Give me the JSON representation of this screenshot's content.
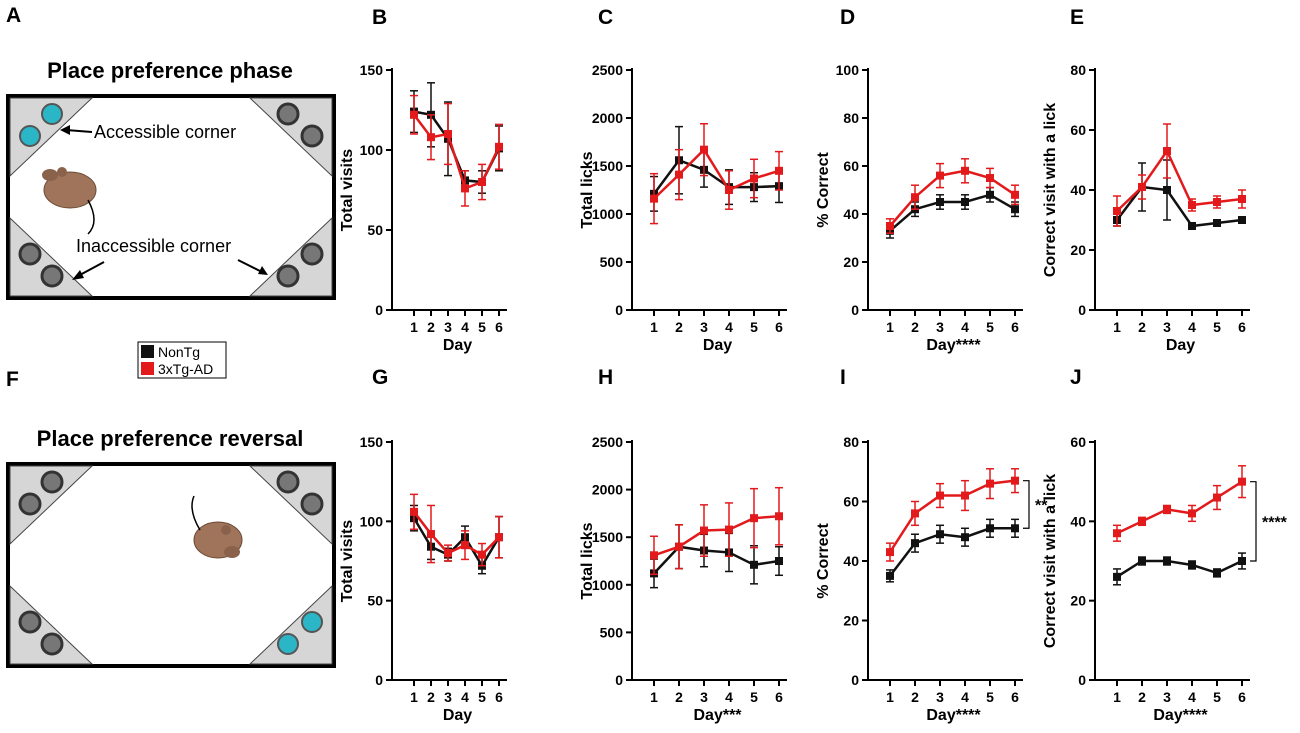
{
  "panel_letters": [
    "A",
    "B",
    "C",
    "D",
    "E",
    "F",
    "G",
    "H",
    "I",
    "J"
  ],
  "schematics": [
    {
      "letter": "A",
      "title": "Place preference phase",
      "labels": {
        "accessible": "Accessible corner",
        "inaccessible": "Inaccessible corner"
      }
    },
    {
      "letter": "F",
      "title": "Place preference reversal"
    }
  ],
  "legend": [
    {
      "name": "NonTg",
      "color": "#111111"
    },
    {
      "name": "3xTg-AD",
      "color": "#e31a1c"
    }
  ],
  "colors": {
    "nontg": "#111111",
    "tg": "#e31a1c",
    "mouse": "#a0745a",
    "cyan": "#2bb6c7",
    "gray_corner": "#cfcfcf"
  },
  "chart_data": [
    {
      "id": "B",
      "type": "line",
      "title": "",
      "xlabel": "Day",
      "ylabel": "Total visits",
      "x": [
        1,
        2,
        3,
        4,
        5,
        6
      ],
      "ylim": [
        0,
        150
      ],
      "yticks": [
        0,
        50,
        100,
        150
      ],
      "series": [
        {
          "name": "NonTg",
          "values": [
            124,
            122,
            107,
            81,
            80,
            101
          ],
          "errors": [
            13,
            20,
            23,
            6,
            7,
            14
          ]
        },
        {
          "name": "3xTg-AD",
          "values": [
            122,
            108,
            110,
            76,
            80,
            102
          ],
          "errors": [
            12,
            14,
            19,
            11,
            11,
            14
          ]
        }
      ]
    },
    {
      "id": "C",
      "type": "line",
      "title": "",
      "xlabel": "Day",
      "ylabel": "Total licks",
      "x": [
        1,
        2,
        3,
        4,
        5,
        6
      ],
      "ylim": [
        0,
        2500
      ],
      "yticks": [
        0,
        500,
        1000,
        1500,
        2000,
        2500
      ],
      "series": [
        {
          "name": "NonTg",
          "values": [
            1210,
            1560,
            1460,
            1280,
            1280,
            1290
          ],
          "errors": [
            180,
            350,
            180,
            180,
            150,
            170
          ]
        },
        {
          "name": "3xTg-AD",
          "values": [
            1160,
            1410,
            1670,
            1250,
            1370,
            1450
          ],
          "errors": [
            260,
            260,
            270,
            200,
            200,
            200
          ]
        }
      ]
    },
    {
      "id": "D",
      "type": "line",
      "title": "",
      "xlabel": "Day****",
      "ylabel": "% Correct",
      "x": [
        1,
        2,
        3,
        4,
        5,
        6
      ],
      "ylim": [
        0,
        100
      ],
      "yticks": [
        0,
        20,
        40,
        60,
        80,
        100
      ],
      "series": [
        {
          "name": "NonTg",
          "values": [
            33,
            42,
            45,
            45,
            48,
            42
          ],
          "errors": [
            3,
            3,
            3,
            3,
            3,
            3
          ]
        },
        {
          "name": "3xTg-AD",
          "values": [
            35,
            47,
            56,
            58,
            55,
            48
          ],
          "errors": [
            3,
            5,
            5,
            5,
            4,
            4
          ]
        }
      ]
    },
    {
      "id": "E",
      "type": "line",
      "title": "",
      "xlabel": "Day",
      "ylabel": "Correct visit with a lick",
      "x": [
        1,
        2,
        3,
        4,
        5,
        6
      ],
      "ylim": [
        0,
        80
      ],
      "yticks": [
        0,
        20,
        40,
        60,
        80
      ],
      "series": [
        {
          "name": "NonTg",
          "values": [
            30,
            41,
            40,
            28,
            29,
            30
          ],
          "errors": [
            2,
            8,
            10,
            1,
            1,
            1
          ]
        },
        {
          "name": "3xTg-AD",
          "values": [
            33,
            41,
            53,
            35,
            36,
            37
          ],
          "errors": [
            5,
            4,
            9,
            2,
            2,
            3
          ]
        }
      ]
    },
    {
      "id": "G",
      "type": "line",
      "title": "",
      "xlabel": "Day",
      "ylabel": "Total visits",
      "x": [
        1,
        2,
        3,
        4,
        5,
        6
      ],
      "ylim": [
        0,
        150
      ],
      "yticks": [
        0,
        50,
        100,
        150
      ],
      "series": [
        {
          "name": "NonTg",
          "values": [
            102,
            84,
            79,
            90,
            72,
            90
          ],
          "errors": [
            8,
            8,
            4,
            7,
            5,
            13
          ]
        },
        {
          "name": "3xTg-AD",
          "values": [
            106,
            92,
            80,
            85,
            79,
            90
          ],
          "errors": [
            11,
            18,
            5,
            9,
            7,
            13
          ]
        }
      ]
    },
    {
      "id": "H",
      "type": "line",
      "title": "",
      "xlabel": "Day***",
      "ylabel": "Total licks",
      "x": [
        1,
        2,
        3,
        4,
        5,
        6
      ],
      "ylim": [
        0,
        2500
      ],
      "yticks": [
        0,
        500,
        1000,
        1500,
        2000,
        2500
      ],
      "series": [
        {
          "name": "NonTg",
          "values": [
            1120,
            1400,
            1360,
            1340,
            1210,
            1250
          ],
          "errors": [
            150,
            230,
            170,
            200,
            200,
            150
          ]
        },
        {
          "name": "3xTg-AD",
          "values": [
            1310,
            1400,
            1570,
            1580,
            1700,
            1720
          ],
          "errors": [
            200,
            230,
            270,
            280,
            310,
            300
          ]
        }
      ]
    },
    {
      "id": "I",
      "type": "line",
      "title": "",
      "xlabel": "Day****",
      "ylabel": "% Correct",
      "x": [
        1,
        2,
        3,
        4,
        5,
        6
      ],
      "ylim": [
        0,
        80
      ],
      "yticks": [
        0,
        20,
        40,
        60,
        80
      ],
      "significance": "**",
      "series": [
        {
          "name": "NonTg",
          "values": [
            35,
            46,
            49,
            48,
            51,
            51
          ],
          "errors": [
            2,
            3,
            3,
            3,
            3,
            3
          ]
        },
        {
          "name": "3xTg-AD",
          "values": [
            43,
            56,
            62,
            62,
            66,
            67
          ],
          "errors": [
            3,
            4,
            4,
            5,
            5,
            4
          ]
        }
      ]
    },
    {
      "id": "J",
      "type": "line",
      "title": "",
      "xlabel": "Day****",
      "ylabel": "Correct visit with a lick",
      "x": [
        1,
        2,
        3,
        4,
        5,
        6
      ],
      "ylim": [
        0,
        60
      ],
      "yticks": [
        0,
        20,
        40,
        60
      ],
      "significance": "****",
      "series": [
        {
          "name": "NonTg",
          "values": [
            26,
            30,
            30,
            29,
            27,
            30
          ],
          "errors": [
            2,
            1,
            1,
            1,
            1,
            2
          ]
        },
        {
          "name": "3xTg-AD",
          "values": [
            37,
            40,
            43,
            42,
            46,
            50
          ],
          "errors": [
            2,
            1,
            1,
            2,
            3,
            4
          ]
        }
      ]
    }
  ]
}
